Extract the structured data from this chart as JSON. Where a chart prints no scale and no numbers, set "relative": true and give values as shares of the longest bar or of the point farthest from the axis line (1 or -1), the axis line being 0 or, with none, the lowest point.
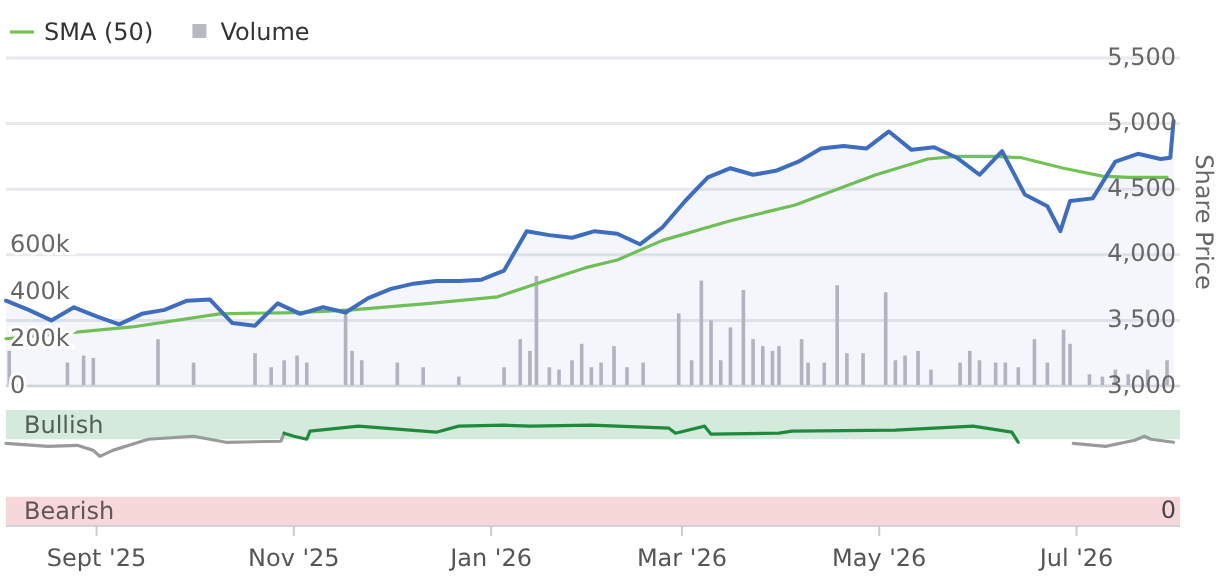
{
  "chart_data": [
    {
      "type": "area",
      "legend": "top left",
      "grid": "y",
      "tick_labels": "y",
      "ylabel": "Share Price",
      "xlim": [
        "2025-08-04",
        "2026-08-02"
      ],
      "ylim": [
        3000,
        5500
      ],
      "yticks": [
        {
          "value": 3000,
          "label": "3,000"
        },
        {
          "value": 3500,
          "label": "3,500"
        },
        {
          "value": 4000,
          "label": "4,000"
        },
        {
          "value": 4500,
          "label": "4,500"
        },
        {
          "value": 5000,
          "label": "5,000"
        },
        {
          "value": 5500,
          "label": "5,500"
        }
      ],
      "y2lim": [
        0,
        1400000
      ],
      "y2ticks": [
        0,
        {
          "value": 200000,
          "label": "200k"
        },
        {
          "value": 400000,
          "label": "400k"
        },
        {
          "value": 600000,
          "label": "600k"
        }
      ],
      "series": [
        {
          "name": "SMA (50)",
          "type": "line",
          "color": "#72c452",
          "x": [
            "2025-08-04",
            "2025-09-12",
            "2025-10-09",
            "2025-11-02",
            "2025-11-19",
            "2025-12-13",
            "2026-01-03",
            "2026-01-15",
            "2026-01-30",
            "2026-02-09",
            "2026-02-23",
            "2026-03-16",
            "2026-04-05",
            "2026-04-30",
            "2026-05-16",
            "2026-05-25",
            "2026-06-06",
            "2026-06-14",
            "2026-06-27",
            "2026-07-09",
            "2026-07-17",
            "2026-07-29"
          ],
          "values": [
            3360,
            3450,
            3550,
            3560,
            3580,
            3630,
            3680,
            3780,
            3900,
            3960,
            4110,
            4260,
            4380,
            4610,
            4730,
            4750,
            4750,
            4740,
            4660,
            4600,
            4590,
            4590
          ]
        },
        {
          "name": "Volume",
          "type": "bar",
          "axis": "y2",
          "color": "#b6b9c1",
          "x": [
            "2025-08-05",
            "2025-08-23",
            "2025-08-28",
            "2025-08-31",
            "2025-09-20",
            "2025-10-01",
            "2025-10-20",
            "2025-10-25",
            "2025-10-29",
            "2025-11-02",
            "2025-11-05",
            "2025-11-17",
            "2025-11-19",
            "2025-11-22",
            "2025-12-03",
            "2025-12-11",
            "2025-12-22",
            "2026-01-05",
            "2026-01-10",
            "2026-01-13",
            "2026-01-15",
            "2026-01-19",
            "2026-01-22",
            "2026-01-26",
            "2026-01-29",
            "2026-02-01",
            "2026-02-04",
            "2026-02-08",
            "2026-02-12",
            "2026-02-17",
            "2026-02-28",
            "2026-03-04",
            "2026-03-07",
            "2026-03-10",
            "2026-03-13",
            "2026-03-16",
            "2026-03-20",
            "2026-03-23",
            "2026-03-26",
            "2026-03-29",
            "2026-03-31",
            "2026-04-07",
            "2026-04-09",
            "2026-04-14",
            "2026-04-18",
            "2026-04-21",
            "2026-04-26",
            "2026-05-03",
            "2026-05-06",
            "2026-05-09",
            "2026-05-13",
            "2026-05-17",
            "2026-05-26",
            "2026-05-29",
            "2026-06-01",
            "2026-06-06",
            "2026-06-09",
            "2026-06-13",
            "2026-06-18",
            "2026-06-22",
            "2026-06-27",
            "2026-06-29",
            "2026-07-05",
            "2026-07-09",
            "2026-07-13",
            "2026-07-17",
            "2026-07-23",
            "2026-07-29"
          ],
          "values": [
            150000,
            100000,
            130000,
            120000,
            200000,
            100000,
            140000,
            80000,
            110000,
            130000,
            100000,
            310000,
            150000,
            110000,
            100000,
            80000,
            40000,
            80000,
            200000,
            150000,
            470000,
            80000,
            70000,
            110000,
            180000,
            80000,
            100000,
            170000,
            80000,
            100000,
            310000,
            110000,
            450000,
            280000,
            110000,
            250000,
            410000,
            200000,
            170000,
            150000,
            170000,
            200000,
            100000,
            100000,
            430000,
            140000,
            140000,
            400000,
            110000,
            130000,
            150000,
            70000,
            100000,
            150000,
            110000,
            100000,
            100000,
            80000,
            200000,
            100000,
            240000,
            180000,
            50000,
            40000,
            70000,
            50000,
            70000,
            110000
          ]
        },
        {
          "color": "#3e6dc0",
          "x": [
            "2025-08-04",
            "2025-08-11",
            "2025-08-18",
            "2025-08-25",
            "2025-09-01",
            "2025-09-08",
            "2025-09-15",
            "2025-09-22",
            "2025-09-29",
            "2025-10-06",
            "2025-10-13",
            "2025-10-20",
            "2025-10-27",
            "2025-11-03",
            "2025-11-10",
            "2025-11-17",
            "2025-11-24",
            "2025-12-01",
            "2025-12-08",
            "2025-12-15",
            "2025-12-22",
            "2025-12-29",
            "2026-01-05",
            "2026-01-12",
            "2026-01-19",
            "2026-01-26",
            "2026-02-02",
            "2026-02-09",
            "2026-02-16",
            "2026-02-23",
            "2026-03-02",
            "2026-03-09",
            "2026-03-16",
            "2026-03-23",
            "2026-03-30",
            "2026-04-06",
            "2026-04-13",
            "2026-04-20",
            "2026-04-27",
            "2026-05-04",
            "2026-05-11",
            "2026-05-18",
            "2026-05-25",
            "2026-06-01",
            "2026-06-08",
            "2026-06-15",
            "2026-06-22",
            "2026-06-26",
            "2026-06-29",
            "2026-07-06",
            "2026-07-13",
            "2026-07-20",
            "2026-07-27",
            "2026-07-30",
            "2026-07-31"
          ],
          "values": [
            3650,
            3580,
            3500,
            3600,
            3530,
            3470,
            3550,
            3580,
            3650,
            3660,
            3480,
            3460,
            3630,
            3550,
            3600,
            3560,
            3670,
            3740,
            3780,
            3800,
            3800,
            3810,
            3880,
            4180,
            4150,
            4130,
            4180,
            4160,
            4080,
            4210,
            4410,
            4590,
            4660,
            4610,
            4640,
            4710,
            4810,
            4830,
            4810,
            4940,
            4800,
            4820,
            4740,
            4610,
            4790,
            4460,
            4370,
            4180,
            4410,
            4430,
            4710,
            4770,
            4730,
            4740,
            5020
          ]
        }
      ]
    },
    {
      "type": "line",
      "xlim": [
        "2025-08-04",
        "2026-08-02"
      ],
      "xticks": [
        {
          "value": "2025-09-01",
          "label": "Sept '25"
        },
        {
          "value": "2025-11-01",
          "label": "Nov '25"
        },
        {
          "value": "2026-01-01",
          "label": "Jan '26"
        },
        {
          "value": "2026-03-01",
          "label": "Mar '26"
        },
        {
          "value": "2026-05-01",
          "label": "May '26"
        },
        {
          "value": "2026-07-01",
          "label": "Jul '26"
        }
      ],
      "relative": true,
      "annotations": [
        "0"
      ],
      "bands": [
        {
          "axis": "y",
          "from": 0.86,
          "to": 1.15,
          "label": "Bullish",
          "color": "#d4eadc"
        },
        {
          "axis": "y",
          "from": 0,
          "to": 0.29,
          "label": "Bearish",
          "color": "#f6d8db"
        }
      ],
      "series": [
        {
          "color": "#9a9a9a",
          "x": [
            "2025-08-04",
            "2025-08-17",
            "2025-08-26",
            "2025-08-31",
            "2025-09-02",
            "2025-09-06",
            "2025-09-13",
            "2025-09-17",
            "2025-10-01",
            "2025-10-11",
            "2025-10-28",
            "2025-10-29",
            "2026-06-13",
            "2026-06-30",
            "2026-07-10",
            "2026-07-19",
            "2026-07-22",
            "2026-07-24",
            "2026-07-31"
          ],
          "values": [
            0.82,
            0.79,
            0.8,
            0.75,
            0.69,
            0.75,
            0.82,
            0.86,
            0.89,
            0.83,
            0.84,
            0.92,
            null,
            0.82,
            0.79,
            0.85,
            0.89,
            0.86,
            0.83
          ]
        },
        {
          "color": "#1f8a3c",
          "x": [
            "2025-10-29",
            "2025-11-01",
            "2025-11-05",
            "2025-11-06",
            "2025-11-21",
            "2025-12-15",
            "2025-12-22",
            "2026-01-05",
            "2026-01-13",
            "2026-02-01",
            "2026-02-25",
            "2026-02-27",
            "2026-03-08",
            "2026-03-10",
            "2026-03-31",
            "2026-04-04",
            "2026-05-06",
            "2026-05-30",
            "2026-06-11",
            "2026-06-13"
          ],
          "values": [
            0.92,
            0.89,
            0.86,
            0.94,
            0.99,
            0.93,
            0.99,
            1,
            0.99,
            1,
            0.97,
            0.92,
            0.99,
            0.91,
            0.92,
            0.94,
            0.95,
            0.99,
            0.93,
            0.83
          ]
        }
      ]
    }
  ]
}
